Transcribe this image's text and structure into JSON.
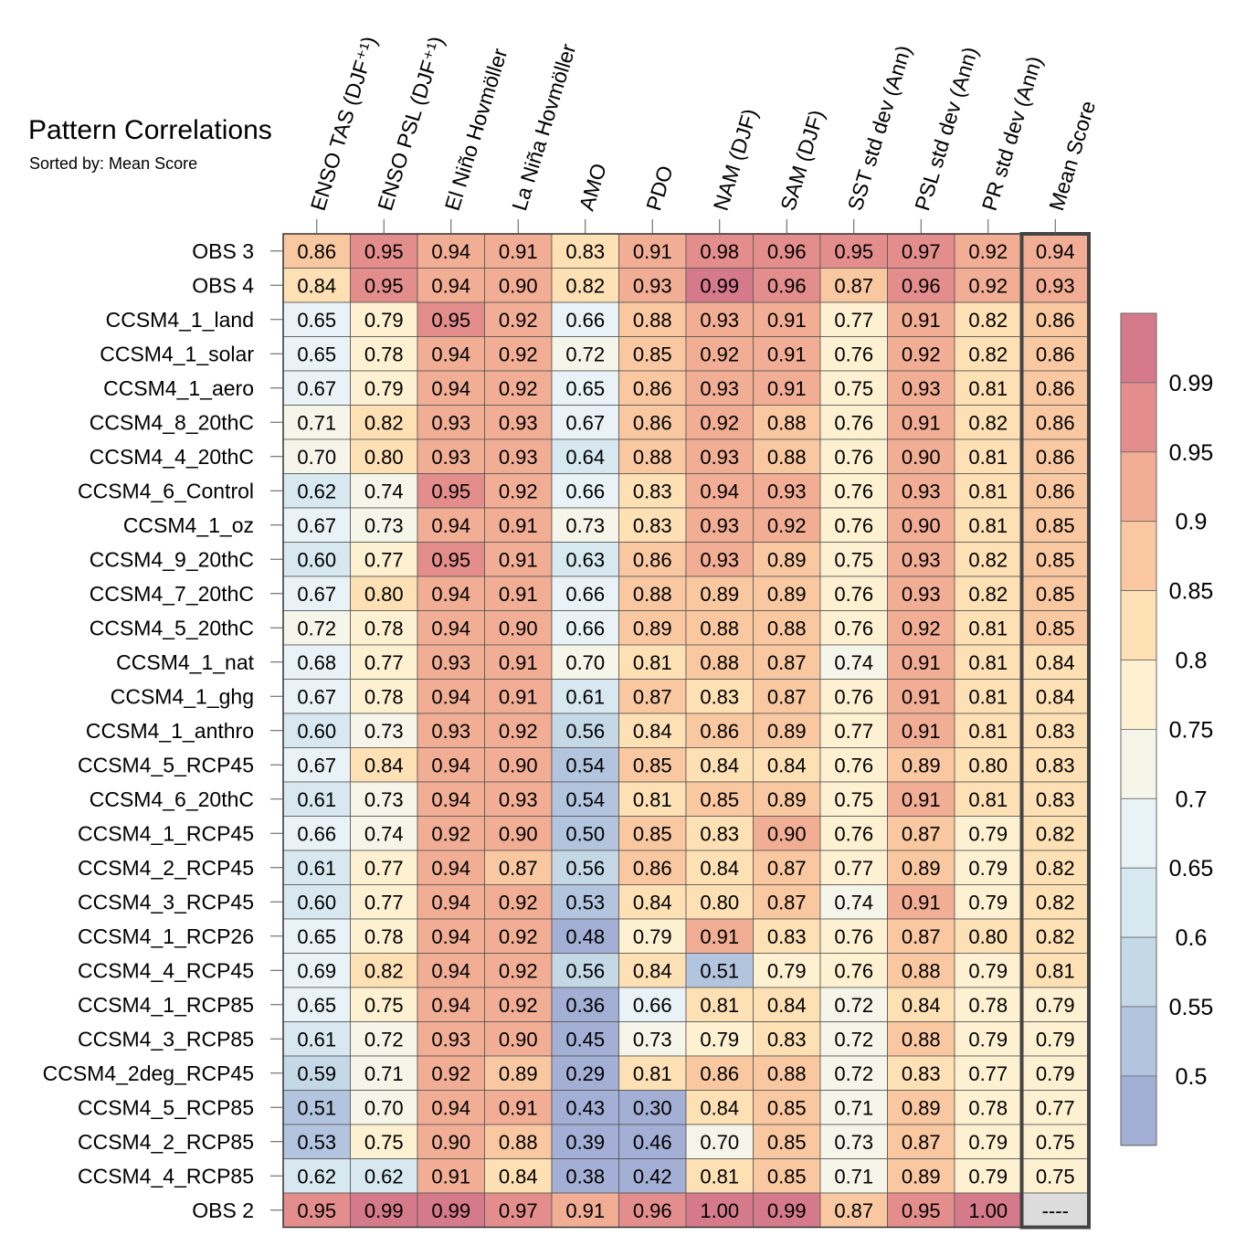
{
  "chart_data": {
    "type": "heatmap",
    "title": "Pattern Correlations",
    "subtitle": "Sorted by: Mean Score",
    "columns": [
      "ENSO TAS (DJF⁺¹)",
      "ENSO PSL (DJF⁺¹)",
      "El Niño Hovmöller",
      "La Niña Hovmöller",
      "AMO",
      "PDO",
      "NAM (DJF)",
      "SAM (DJF)",
      "SST std dev (Ann)",
      "PSL std dev (Ann)",
      "PR std dev (Ann)",
      "Mean Score"
    ],
    "rows": [
      {
        "label": "OBS 3",
        "values": [
          "0.86",
          "0.95",
          "0.94",
          "0.91",
          "0.83",
          "0.91",
          "0.98",
          "0.96",
          "0.95",
          "0.97",
          "0.92",
          "0.94"
        ]
      },
      {
        "label": "OBS 4",
        "values": [
          "0.84",
          "0.95",
          "0.94",
          "0.90",
          "0.82",
          "0.93",
          "0.99",
          "0.96",
          "0.87",
          "0.96",
          "0.92",
          "0.93"
        ]
      },
      {
        "label": "CCSM4_1_land",
        "values": [
          "0.65",
          "0.79",
          "0.95",
          "0.92",
          "0.66",
          "0.88",
          "0.93",
          "0.91",
          "0.77",
          "0.91",
          "0.82",
          "0.86"
        ]
      },
      {
        "label": "CCSM4_1_solar",
        "values": [
          "0.65",
          "0.78",
          "0.94",
          "0.92",
          "0.72",
          "0.85",
          "0.92",
          "0.91",
          "0.76",
          "0.92",
          "0.82",
          "0.86"
        ]
      },
      {
        "label": "CCSM4_1_aero",
        "values": [
          "0.67",
          "0.79",
          "0.94",
          "0.92",
          "0.65",
          "0.86",
          "0.93",
          "0.91",
          "0.75",
          "0.93",
          "0.81",
          "0.86"
        ]
      },
      {
        "label": "CCSM4_8_20thC",
        "values": [
          "0.71",
          "0.82",
          "0.93",
          "0.93",
          "0.67",
          "0.86",
          "0.92",
          "0.88",
          "0.76",
          "0.91",
          "0.82",
          "0.86"
        ]
      },
      {
        "label": "CCSM4_4_20thC",
        "values": [
          "0.70",
          "0.80",
          "0.93",
          "0.93",
          "0.64",
          "0.88",
          "0.93",
          "0.88",
          "0.76",
          "0.90",
          "0.81",
          "0.86"
        ]
      },
      {
        "label": "CCSM4_6_Control",
        "values": [
          "0.62",
          "0.74",
          "0.95",
          "0.92",
          "0.66",
          "0.83",
          "0.94",
          "0.93",
          "0.76",
          "0.93",
          "0.81",
          "0.86"
        ]
      },
      {
        "label": "CCSM4_1_oz",
        "values": [
          "0.67",
          "0.73",
          "0.94",
          "0.91",
          "0.73",
          "0.83",
          "0.93",
          "0.92",
          "0.76",
          "0.90",
          "0.81",
          "0.85"
        ]
      },
      {
        "label": "CCSM4_9_20thC",
        "values": [
          "0.60",
          "0.77",
          "0.95",
          "0.91",
          "0.63",
          "0.86",
          "0.93",
          "0.89",
          "0.75",
          "0.93",
          "0.82",
          "0.85"
        ]
      },
      {
        "label": "CCSM4_7_20thC",
        "values": [
          "0.67",
          "0.80",
          "0.94",
          "0.91",
          "0.66",
          "0.88",
          "0.89",
          "0.89",
          "0.76",
          "0.93",
          "0.82",
          "0.85"
        ]
      },
      {
        "label": "CCSM4_5_20thC",
        "values": [
          "0.72",
          "0.78",
          "0.94",
          "0.90",
          "0.66",
          "0.89",
          "0.88",
          "0.88",
          "0.76",
          "0.92",
          "0.81",
          "0.85"
        ]
      },
      {
        "label": "CCSM4_1_nat",
        "values": [
          "0.68",
          "0.77",
          "0.93",
          "0.91",
          "0.70",
          "0.81",
          "0.88",
          "0.87",
          "0.74",
          "0.91",
          "0.81",
          "0.84"
        ]
      },
      {
        "label": "CCSM4_1_ghg",
        "values": [
          "0.67",
          "0.78",
          "0.94",
          "0.91",
          "0.61",
          "0.87",
          "0.83",
          "0.87",
          "0.76",
          "0.91",
          "0.81",
          "0.84"
        ]
      },
      {
        "label": "CCSM4_1_anthro",
        "values": [
          "0.60",
          "0.73",
          "0.93",
          "0.92",
          "0.56",
          "0.84",
          "0.86",
          "0.89",
          "0.77",
          "0.91",
          "0.81",
          "0.83"
        ]
      },
      {
        "label": "CCSM4_5_RCP45",
        "values": [
          "0.67",
          "0.84",
          "0.94",
          "0.90",
          "0.54",
          "0.85",
          "0.84",
          "0.84",
          "0.76",
          "0.89",
          "0.80",
          "0.83"
        ]
      },
      {
        "label": "CCSM4_6_20thC",
        "values": [
          "0.61",
          "0.73",
          "0.94",
          "0.93",
          "0.54",
          "0.81",
          "0.85",
          "0.89",
          "0.75",
          "0.91",
          "0.81",
          "0.83"
        ]
      },
      {
        "label": "CCSM4_1_RCP45",
        "values": [
          "0.66",
          "0.74",
          "0.92",
          "0.90",
          "0.50",
          "0.85",
          "0.83",
          "0.90",
          "0.76",
          "0.87",
          "0.79",
          "0.82"
        ]
      },
      {
        "label": "CCSM4_2_RCP45",
        "values": [
          "0.61",
          "0.77",
          "0.94",
          "0.87",
          "0.56",
          "0.86",
          "0.84",
          "0.87",
          "0.77",
          "0.89",
          "0.79",
          "0.82"
        ]
      },
      {
        "label": "CCSM4_3_RCP45",
        "values": [
          "0.60",
          "0.77",
          "0.94",
          "0.92",
          "0.53",
          "0.84",
          "0.80",
          "0.87",
          "0.74",
          "0.91",
          "0.79",
          "0.82"
        ]
      },
      {
        "label": "CCSM4_1_RCP26",
        "values": [
          "0.65",
          "0.78",
          "0.94",
          "0.92",
          "0.48",
          "0.79",
          "0.91",
          "0.83",
          "0.76",
          "0.87",
          "0.80",
          "0.82"
        ]
      },
      {
        "label": "CCSM4_4_RCP45",
        "values": [
          "0.69",
          "0.82",
          "0.94",
          "0.92",
          "0.56",
          "0.84",
          "0.51",
          "0.79",
          "0.76",
          "0.88",
          "0.79",
          "0.81"
        ]
      },
      {
        "label": "CCSM4_1_RCP85",
        "values": [
          "0.65",
          "0.75",
          "0.94",
          "0.92",
          "0.36",
          "0.66",
          "0.81",
          "0.84",
          "0.72",
          "0.84",
          "0.78",
          "0.79"
        ]
      },
      {
        "label": "CCSM4_3_RCP85",
        "values": [
          "0.61",
          "0.72",
          "0.93",
          "0.90",
          "0.45",
          "0.73",
          "0.79",
          "0.83",
          "0.72",
          "0.88",
          "0.79",
          "0.79"
        ]
      },
      {
        "label": "CCSM4_2deg_RCP45",
        "values": [
          "0.59",
          "0.71",
          "0.92",
          "0.89",
          "0.29",
          "0.81",
          "0.86",
          "0.88",
          "0.72",
          "0.83",
          "0.77",
          "0.79"
        ]
      },
      {
        "label": "CCSM4_5_RCP85",
        "values": [
          "0.51",
          "0.70",
          "0.94",
          "0.91",
          "0.43",
          "0.30",
          "0.84",
          "0.85",
          "0.71",
          "0.89",
          "0.78",
          "0.77"
        ]
      },
      {
        "label": "CCSM4_2_RCP85",
        "values": [
          "0.53",
          "0.75",
          "0.90",
          "0.88",
          "0.39",
          "0.46",
          "0.70",
          "0.85",
          "0.73",
          "0.87",
          "0.79",
          "0.75"
        ]
      },
      {
        "label": "CCSM4_4_RCP85",
        "values": [
          "0.62",
          "0.62",
          "0.91",
          "0.84",
          "0.38",
          "0.42",
          "0.81",
          "0.85",
          "0.71",
          "0.89",
          "0.79",
          "0.75"
        ]
      },
      {
        "label": "OBS 2",
        "values": [
          "0.95",
          "0.99",
          "0.99",
          "0.97",
          "0.91",
          "0.96",
          "1.00",
          "0.99",
          "0.87",
          "0.95",
          "1.00",
          "----"
        ]
      }
    ],
    "colorbar": {
      "tick_labels": [
        "0.99",
        "0.95",
        "0.9",
        "0.85",
        "0.8",
        "0.75",
        "0.7",
        "0.65",
        "0.6",
        "0.55",
        "0.5"
      ],
      "bounds": [
        0.5,
        0.55,
        0.6,
        0.65,
        0.7,
        0.75,
        0.8,
        0.85,
        0.9,
        0.95,
        0.99
      ],
      "colors": [
        "#a3afd4",
        "#b3c5de",
        "#c4d8e6",
        "#d7e8f0",
        "#e9f3f7",
        "#f5f5ea",
        "#fef1d1",
        "#fde0b4",
        "#f9c8a0",
        "#f1ae94",
        "#e38e8d",
        "#d47a8b"
      ]
    },
    "missing_color": "#dcdcdc"
  }
}
